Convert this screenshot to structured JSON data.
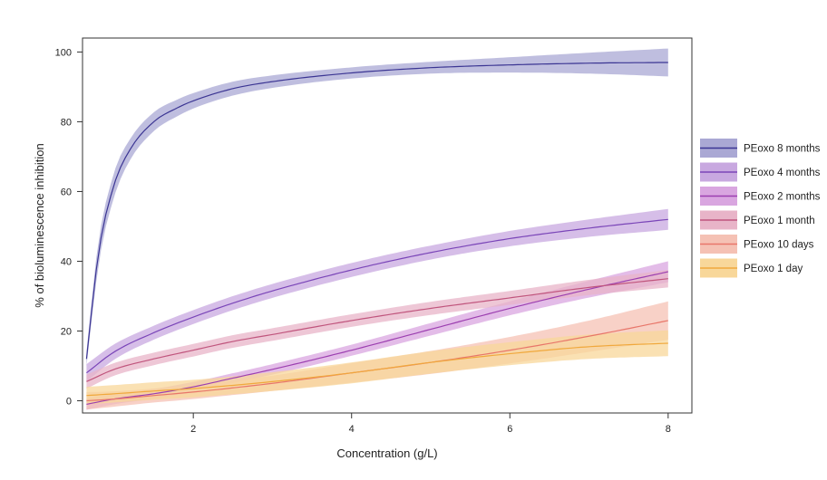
{
  "chart_data": {
    "type": "line",
    "xlabel": "Concentration (g/L)",
    "ylabel": "% of bioluminescence inhibition",
    "xlim": [
      0.6,
      8.3
    ],
    "ylim": [
      -3.5,
      104
    ],
    "x_ticks": [
      2,
      4,
      6,
      8
    ],
    "y_ticks": [
      0,
      20,
      40,
      60,
      80,
      100
    ],
    "grid": false,
    "legend_position": "right",
    "series": [
      {
        "name": "PEoxo 8 months",
        "line_color": "#3b3593",
        "band_color": "#aaa8d4",
        "x": [
          0.65,
          0.8,
          1.0,
          1.2,
          1.5,
          1.8,
          2.0,
          2.5,
          3.0,
          4.0,
          5.0,
          6.0,
          7.0,
          8.0
        ],
        "y": [
          12,
          42,
          62,
          72,
          80,
          84,
          86,
          89.5,
          91.5,
          94,
          95.5,
          96.3,
          96.8,
          97
        ],
        "ci_width": [
          2,
          3.5,
          3.5,
          3,
          2.7,
          2.4,
          2.2,
          2,
          1.8,
          1.6,
          1.7,
          2.2,
          3,
          4
        ]
      },
      {
        "name": "PEoxo 4 months",
        "line_color": "#7a45b8",
        "band_color": "#c8a8e0",
        "x": [
          0.65,
          1.0,
          1.5,
          2.0,
          2.5,
          3.0,
          4.0,
          5.0,
          6.0,
          7.0,
          8.0
        ],
        "y": [
          8,
          14,
          19.5,
          24,
          28,
          31.5,
          37.5,
          42.5,
          46.5,
          49.5,
          52
        ],
        "ci_width": [
          2.5,
          2.2,
          2,
          2,
          2,
          2,
          2,
          2,
          2.2,
          2.5,
          3
        ]
      },
      {
        "name": "PEoxo 2 months",
        "line_color": "#9c3fb0",
        "band_color": "#d9a6e0",
        "x": [
          0.65,
          1.0,
          1.5,
          2.0,
          2.5,
          3.0,
          4.0,
          5.0,
          6.0,
          7.0,
          8.0
        ],
        "y": [
          -1,
          0.5,
          2,
          4,
          6.5,
          9,
          14.5,
          20.5,
          26.5,
          32,
          37
        ],
        "ci_width": [
          1.6,
          1.5,
          1.4,
          1.4,
          1.4,
          1.5,
          1.6,
          1.8,
          2,
          2.4,
          3
        ]
      },
      {
        "name": "PEoxo 1 month",
        "line_color": "#c0557d",
        "band_color": "#e8b4c8",
        "x": [
          0.65,
          1.0,
          1.5,
          2.0,
          2.5,
          3.0,
          4.0,
          5.0,
          6.0,
          7.0,
          8.0
        ],
        "y": [
          5.5,
          9,
          12,
          14.5,
          17,
          19,
          23,
          26.5,
          29.5,
          32.5,
          35
        ],
        "ci_width": [
          2,
          1.8,
          1.8,
          1.8,
          1.8,
          1.8,
          1.8,
          1.9,
          2,
          2.2,
          2.5
        ]
      },
      {
        "name": "PEoxo 10 days",
        "line_color": "#e8766a",
        "band_color": "#f5c1b4",
        "x": [
          0.65,
          1.0,
          1.5,
          2.0,
          3.0,
          4.0,
          5.0,
          6.0,
          7.0,
          8.0
        ],
        "y": [
          0,
          0.5,
          1.5,
          2.5,
          5,
          8,
          11,
          14.5,
          18.5,
          23
        ],
        "ci_width": [
          2.5,
          2.2,
          2,
          2,
          2.2,
          2.8,
          3.3,
          3.8,
          4.5,
          5.5
        ]
      },
      {
        "name": "PEoxo 1 day",
        "line_color": "#f0a83c",
        "band_color": "#f8d79a",
        "x": [
          0.65,
          1.0,
          1.5,
          2.0,
          3.0,
          4.0,
          5.0,
          6.0,
          7.0,
          8.0
        ],
        "y": [
          1.5,
          2,
          2.8,
          3.5,
          5.5,
          8,
          11,
          13.5,
          15.5,
          16.5
        ],
        "ci_width": [
          2.5,
          2.5,
          2.5,
          2.5,
          2.7,
          3,
          3.2,
          3.3,
          3.5,
          3.7
        ]
      }
    ]
  }
}
